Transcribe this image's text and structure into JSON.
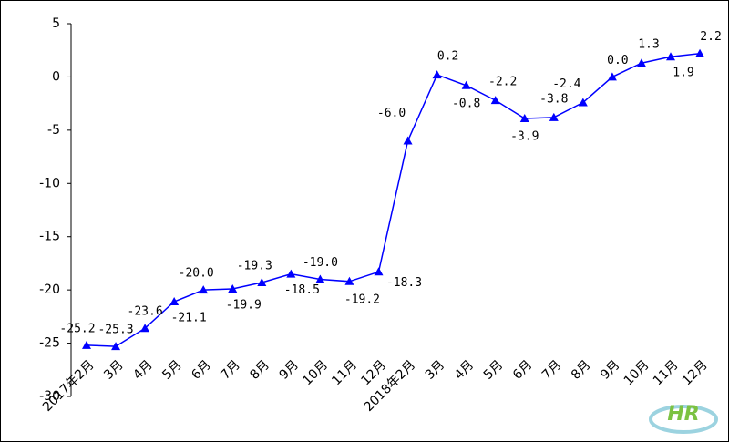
{
  "chart_data": {
    "type": "line",
    "categories": [
      "2017年2月",
      "3月",
      "4月",
      "5月",
      "6月",
      "7月",
      "8月",
      "9月",
      "10月",
      "11月",
      "12月",
      "2018年2月",
      "3月",
      "4月",
      "5月",
      "6月",
      "7月",
      "8月",
      "9月",
      "10月",
      "11月",
      "12月"
    ],
    "series": [
      {
        "color": "#0000ff",
        "values": [
          -25.2,
          -25.3,
          -23.6,
          -21.1,
          -20.0,
          -19.9,
          -19.3,
          -18.5,
          -19.0,
          -19.2,
          -18.3,
          -6.0,
          0.2,
          -0.8,
          -2.2,
          -3.9,
          -3.8,
          -2.4,
          0.0,
          1.3,
          1.9,
          2.2
        ],
        "value_labels": [
          "-25.2",
          "-25.3",
          "-23.6",
          "-21.1",
          "-20.0",
          "-19.9",
          "-19.3",
          "-18.5",
          "-19.0",
          "-19.2",
          "-18.3",
          "-6.0",
          "0.2",
          "-0.8",
          "-2.2",
          "-3.9",
          "-3.8",
          "-2.4",
          "0.0",
          "1.3",
          "1.9",
          "2.2"
        ]
      }
    ],
    "ylim": [
      -30,
      5
    ],
    "yticks": [
      5,
      0,
      -5,
      -10,
      -15,
      -20,
      -25,
      -30
    ],
    "grid": false
  }
}
